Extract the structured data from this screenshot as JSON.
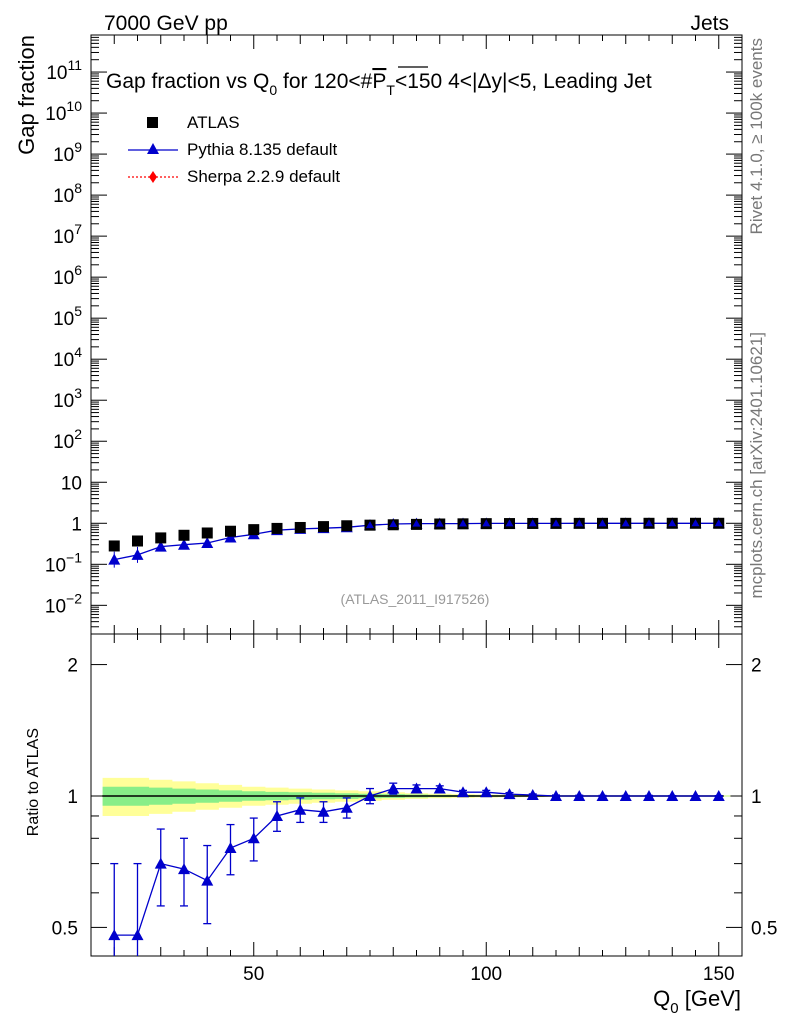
{
  "header": {
    "left": "7000 GeV pp",
    "right": "Jets"
  },
  "side": {
    "top": "Rivet 4.1.0, ≥ 100k events",
    "bottom": "mcplots.cern.ch [arXiv:2401.10621]"
  },
  "watermark": "(ATLAS_2011_I917526)",
  "colors": {
    "atlas": "#000000",
    "pythia": "#0000cc",
    "sherpa": "#ff0000",
    "band_outer": "#ffff99",
    "band_inner": "#88ee88"
  },
  "chart_data": [
    {
      "type": "scatter",
      "title": "Gap fraction vs Q0 for 120<#PT<150  4<|Δy|<5, Leading Jet",
      "title_parts": {
        "prefix": "Gap fraction vs Q",
        "sub0": "0",
        "mid": " for 120<#",
        "p": "P",
        "t": "T",
        "suffix": "<150  4<|Δy|<5, Leading Jet"
      },
      "ylabel": "Gap fraction",
      "yscale": "log",
      "ylim": [
        0.002,
        800000000000
      ],
      "xlim": [
        15,
        155
      ],
      "yticks": [
        {
          "value": 0.01,
          "base": "10",
          "exp": "−2"
        },
        {
          "value": 0.1,
          "base": "10",
          "exp": "−1"
        },
        {
          "value": 1,
          "base": "1",
          "exp": ""
        },
        {
          "value": 10,
          "base": "10",
          "exp": ""
        },
        {
          "value": 100,
          "base": "10",
          "exp": "2"
        },
        {
          "value": 1000,
          "base": "10",
          "exp": "3"
        },
        {
          "value": 10000,
          "base": "10",
          "exp": "4"
        },
        {
          "value": 100000,
          "base": "10",
          "exp": "5"
        },
        {
          "value": 1000000,
          "base": "10",
          "exp": "6"
        },
        {
          "value": 10000000,
          "base": "10",
          "exp": "7"
        },
        {
          "value": 100000000,
          "base": "10",
          "exp": "8"
        },
        {
          "value": 1000000000,
          "base": "10",
          "exp": "9"
        },
        {
          "value": 10000000000,
          "base": "10",
          "exp": "10"
        },
        {
          "value": 100000000000,
          "base": "10",
          "exp": "11"
        }
      ],
      "legend": [
        "ATLAS",
        "Pythia 8.135 default",
        "Sherpa 2.2.9 default"
      ],
      "legend_position": "top-left",
      "x": [
        20,
        25,
        30,
        35,
        40,
        45,
        50,
        55,
        60,
        65,
        70,
        75,
        80,
        85,
        90,
        95,
        100,
        105,
        110,
        115,
        120,
        125,
        130,
        135,
        140,
        145,
        150
      ],
      "series": [
        {
          "name": "ATLAS",
          "values": [
            0.28,
            0.37,
            0.44,
            0.51,
            0.58,
            0.64,
            0.7,
            0.75,
            0.79,
            0.83,
            0.87,
            0.9,
            0.92,
            0.94,
            0.96,
            0.97,
            0.98,
            0.985,
            0.99,
            0.993,
            0.995,
            0.997,
            0.998,
            0.999,
            1.0,
            1.0,
            1.0
          ]
        },
        {
          "name": "Pythia 8.135 default",
          "values": [
            0.13,
            0.17,
            0.27,
            0.3,
            0.33,
            0.45,
            0.54,
            0.68,
            0.73,
            0.76,
            0.8,
            0.9,
            0.96,
            0.98,
            0.98,
            0.985,
            0.995,
            0.995,
            0.995,
            0.995,
            0.997,
            0.997,
            0.998,
            0.999,
            1.0,
            1.0,
            1.0
          ]
        }
      ]
    },
    {
      "type": "scatter",
      "ylabel": "Ratio to ATLAS",
      "xlabel_parts": {
        "q": "Q",
        "sub": "0",
        "unit": " [GeV]"
      },
      "xlim": [
        15,
        155
      ],
      "ylim": [
        0.43,
        2.35
      ],
      "yscale": "log",
      "xticks": [
        50,
        100,
        150
      ],
      "yticks": [
        0.5,
        1,
        2
      ],
      "x": [
        20,
        25,
        30,
        35,
        40,
        45,
        50,
        55,
        60,
        65,
        70,
        75,
        80,
        85,
        90,
        95,
        100,
        105,
        110,
        115,
        120,
        125,
        130,
        135,
        140,
        145,
        150
      ],
      "series": [
        {
          "name": "Pythia 8.135 default",
          "values": [
            0.48,
            0.48,
            0.7,
            0.68,
            0.64,
            0.76,
            0.8,
            0.9,
            0.93,
            0.92,
            0.94,
            1.0,
            1.04,
            1.04,
            1.04,
            1.02,
            1.02,
            1.01,
            1.005,
            1.0,
            1.0,
            1.0,
            1.0,
            1.0,
            1.0,
            1.0,
            1.0
          ],
          "err": [
            0.22,
            0.22,
            0.14,
            0.12,
            0.13,
            0.1,
            0.09,
            0.07,
            0.06,
            0.05,
            0.05,
            0.04,
            0.03,
            0.02,
            0.015,
            0.01,
            0.01,
            0.008,
            0.006,
            0.005,
            0.004,
            0.003,
            0.003,
            0.003,
            0.002,
            0.002,
            0.002
          ]
        }
      ],
      "band_outer": [
        0.1,
        0.1,
        0.09,
        0.08,
        0.07,
        0.06,
        0.05,
        0.045,
        0.04,
        0.035,
        0.03,
        0.025,
        0.02,
        0.015,
        0.012,
        0.01,
        0.008,
        0.007,
        0.006,
        0.005,
        0.005,
        0.004,
        0.004,
        0.004,
        0.003,
        0.003,
        0.003
      ],
      "band_inner": [
        0.05,
        0.05,
        0.045,
        0.04,
        0.035,
        0.03,
        0.025,
        0.022,
        0.02,
        0.017,
        0.015,
        0.012,
        0.01,
        0.008,
        0.006,
        0.005,
        0.004,
        0.0035,
        0.003,
        0.0025,
        0.0025,
        0.002,
        0.002,
        0.002,
        0.0015,
        0.0015,
        0.0015
      ]
    }
  ]
}
